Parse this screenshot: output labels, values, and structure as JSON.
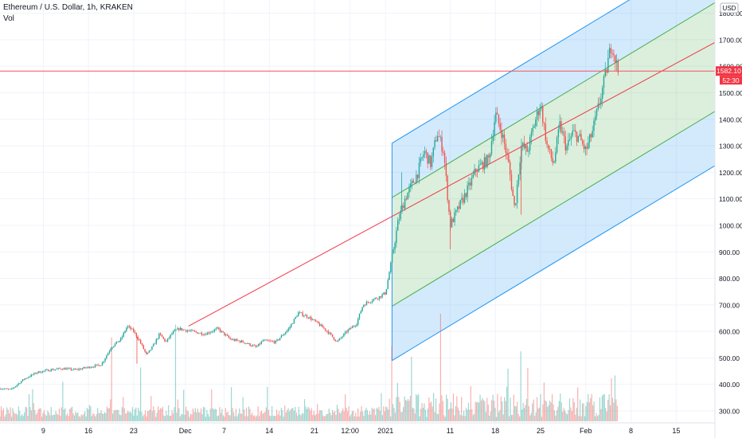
{
  "header": {
    "symbol_title": "Ethereum / U.S. Dollar, 1h, KRAKEN",
    "volume_label": "Vol"
  },
  "price_axis": {
    "currency": "USD",
    "current_price": "1582.10",
    "countdown": "52:30"
  },
  "colors": {
    "up": "#26a69a",
    "down": "#ef5350",
    "channel_outer": "#2196f3",
    "channel_inner": "#4caf50",
    "median": "#f23645",
    "price_line": "#f7525f"
  },
  "chart_data": {
    "type": "candlestick",
    "title": "Ethereum / U.S. Dollar, 1h, KRAKEN",
    "ylabel": "USD",
    "ylim": [
      255,
      1850
    ],
    "y_ticks": [
      300,
      400,
      500,
      600,
      700,
      800,
      900,
      1000,
      1100,
      1200,
      1300,
      1400,
      1500,
      1600,
      1700,
      1800
    ],
    "y_tick_labels": [
      "300.00",
      "400.00",
      "500.00",
      "600.00",
      "700.00",
      "800.00",
      "900.00",
      "1000.00",
      "1100.00",
      "1200.00",
      "1300.00",
      "1400.00",
      "1500.00",
      "1600.00",
      "1700.00",
      "1800.00"
    ],
    "x_ticks": [
      {
        "label": "9",
        "day": 9
      },
      {
        "label": "16",
        "day": 16
      },
      {
        "label": "23",
        "day": 23
      },
      {
        "label": "Dec",
        "day": 31
      },
      {
        "label": "7",
        "day": 37
      },
      {
        "label": "14",
        "day": 44
      },
      {
        "label": "21",
        "day": 51
      },
      {
        "label": "12:00",
        "day": 56.5
      },
      {
        "label": "2021",
        "day": 62
      },
      {
        "label": "11",
        "day": 72
      },
      {
        "label": "18",
        "day": 79
      },
      {
        "label": "25",
        "day": 86
      },
      {
        "label": "Feb",
        "day": 93
      },
      {
        "label": "8",
        "day": 100
      },
      {
        "label": "15",
        "day": 107
      }
    ],
    "xlim": [
      2.3,
      113
    ],
    "current_price": 1582.1,
    "price_path": [
      [
        2.3,
        385
      ],
      [
        4,
        380
      ],
      [
        6,
        420
      ],
      [
        8,
        445
      ],
      [
        10,
        455
      ],
      [
        12,
        460
      ],
      [
        14,
        455
      ],
      [
        16,
        465
      ],
      [
        18,
        475
      ],
      [
        19.5,
        540
      ],
      [
        21,
        570
      ],
      [
        22,
        620
      ],
      [
        23,
        600
      ],
      [
        24,
        560
      ],
      [
        25,
        510
      ],
      [
        26,
        545
      ],
      [
        27,
        590
      ],
      [
        28,
        560
      ],
      [
        29,
        595
      ],
      [
        30,
        610
      ],
      [
        32,
        600
      ],
      [
        34,
        590
      ],
      [
        36,
        610
      ],
      [
        38,
        570
      ],
      [
        40,
        560
      ],
      [
        42,
        540
      ],
      [
        43,
        565
      ],
      [
        45,
        560
      ],
      [
        47,
        610
      ],
      [
        48.5,
        670
      ],
      [
        50,
        655
      ],
      [
        51.5,
        630
      ],
      [
        53,
        600
      ],
      [
        54.5,
        560
      ],
      [
        56,
        600
      ],
      [
        57.5,
        630
      ],
      [
        58.5,
        700
      ],
      [
        60,
        720
      ],
      [
        61,
        730
      ],
      [
        62,
        745
      ],
      [
        63,
        880
      ],
      [
        64,
        1020
      ],
      [
        65,
        1100
      ],
      [
        66,
        1150
      ],
      [
        67,
        1200
      ],
      [
        68,
        1280
      ],
      [
        69,
        1230
      ],
      [
        70,
        1350
      ],
      [
        71,
        1280
      ],
      [
        72,
        1000
      ],
      [
        73,
        1050
      ],
      [
        74,
        1100
      ],
      [
        75,
        1150
      ],
      [
        76,
        1210
      ],
      [
        77,
        1230
      ],
      [
        78,
        1250
      ],
      [
        79,
        1420
      ],
      [
        80,
        1350
      ],
      [
        81,
        1240
      ],
      [
        82,
        1060
      ],
      [
        83,
        1300
      ],
      [
        84,
        1280
      ],
      [
        85,
        1380
      ],
      [
        86,
        1460
      ],
      [
        87,
        1300
      ],
      [
        88,
        1230
      ],
      [
        89,
        1380
      ],
      [
        90,
        1290
      ],
      [
        91,
        1350
      ],
      [
        92,
        1330
      ],
      [
        93,
        1280
      ],
      [
        94,
        1350
      ],
      [
        95,
        1450
      ],
      [
        96,
        1560
      ],
      [
        97,
        1690
      ],
      [
        98,
        1582
      ]
    ],
    "spikes": [
      {
        "day": 23.5,
        "low": 478
      },
      {
        "day": 64.5,
        "high": 1200
      },
      {
        "day": 72,
        "low": 910
      },
      {
        "day": 83,
        "low": 1040
      }
    ],
    "median_line": [
      [
        31.5,
        620
      ],
      [
        113,
        1690
      ]
    ],
    "channel": {
      "start_day": 63,
      "median_start": 900,
      "slope_per_day": 14.7,
      "inner_offset": 205,
      "outer_offset": 410
    },
    "volume": {
      "series": "Vol",
      "baseline": 0,
      "notable_peaks": [
        {
          "day": 19.5,
          "value": 0.78
        },
        {
          "day": 24,
          "value": 0.5
        },
        {
          "day": 29.5,
          "value": 0.9
        },
        {
          "day": 63,
          "value": 0.7
        },
        {
          "day": 66,
          "value": 0.6
        },
        {
          "day": 70.5,
          "value": 1.0
        },
        {
          "day": 83,
          "value": 0.65
        },
        {
          "day": 97,
          "value": 0.4
        }
      ]
    }
  }
}
